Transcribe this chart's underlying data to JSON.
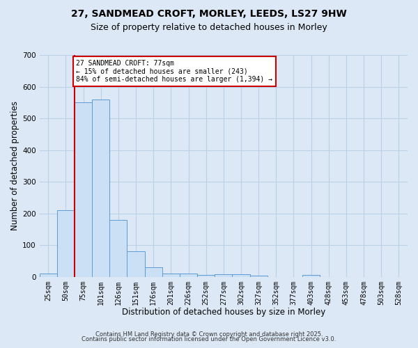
{
  "title_line1": "27, SANDMEAD CROFT, MORLEY, LEEDS, LS27 9HW",
  "title_line2": "Size of property relative to detached houses in Morley",
  "xlabel": "Distribution of detached houses by size in Morley",
  "ylabel": "Number of detached properties",
  "bar_values": [
    10,
    210,
    550,
    560,
    180,
    80,
    30,
    10,
    10,
    6,
    8,
    8,
    3,
    0,
    0,
    5,
    0,
    0,
    0,
    0,
    0
  ],
  "x_labels": [
    "25sqm",
    "50sqm",
    "75sqm",
    "101sqm",
    "126sqm",
    "151sqm",
    "176sqm",
    "201sqm",
    "226sqm",
    "252sqm",
    "277sqm",
    "302sqm",
    "327sqm",
    "352sqm",
    "377sqm",
    "403sqm",
    "428sqm",
    "453sqm",
    "478sqm",
    "503sqm",
    "528sqm"
  ],
  "bar_color": "#cce0f5",
  "bar_edge_color": "#5b9bd5",
  "grid_color": "#b8d0e8",
  "background_color": "#dce8f5",
  "red_line_x": 1.5,
  "red_line_color": "#cc0000",
  "annotation_text": "27 SANDMEAD CROFT: 77sqm\n← 15% of detached houses are smaller (243)\n84% of semi-detached houses are larger (1,394) →",
  "annotation_box_color": "#ffffff",
  "annotation_edge_color": "#cc0000",
  "ylim": [
    0,
    700
  ],
  "yticks": [
    0,
    100,
    200,
    300,
    400,
    500,
    600,
    700
  ],
  "footnote1": "Contains HM Land Registry data © Crown copyright and database right 2025.",
  "footnote2": "Contains public sector information licensed under the Open Government Licence v3.0.",
  "title_fontsize": 10,
  "subtitle_fontsize": 9,
  "xlabel_fontsize": 8.5,
  "ylabel_fontsize": 8.5,
  "tick_fontsize": 7,
  "annot_fontsize": 7,
  "footnote_fontsize": 6
}
